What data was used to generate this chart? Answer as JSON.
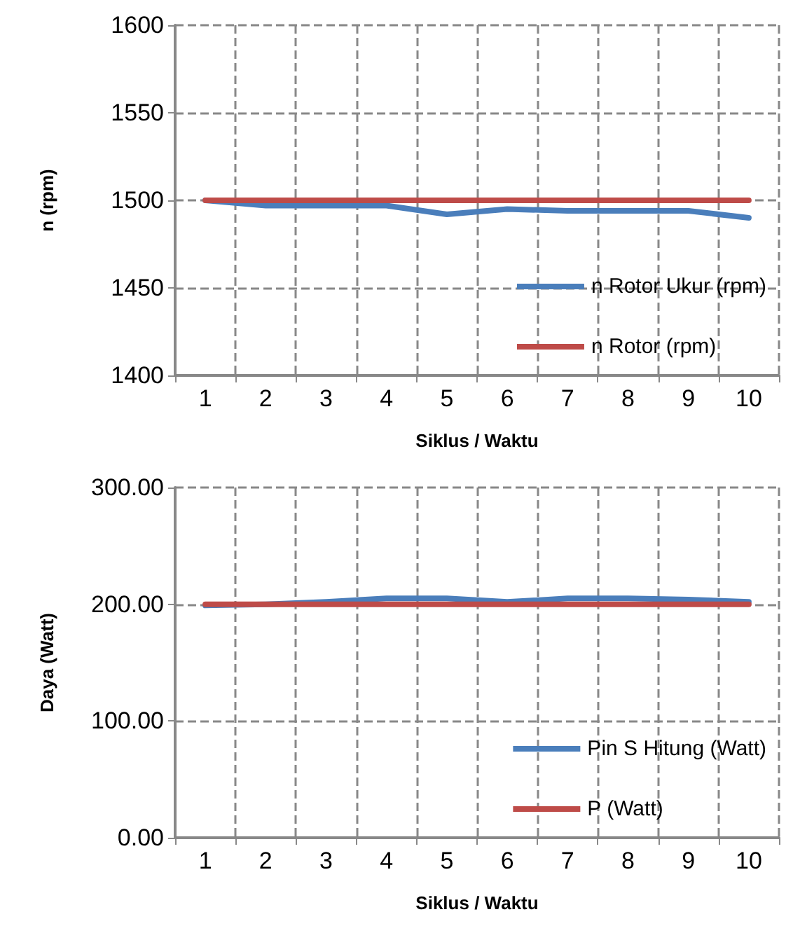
{
  "chart_data": [
    {
      "type": "line",
      "xlabel": "Siklus / Waktu",
      "ylabel": "n (rpm)",
      "categories": [
        "1",
        "2",
        "3",
        "4",
        "5",
        "6",
        "7",
        "8",
        "9",
        "10"
      ],
      "series": [
        {
          "name": "n Rotor Ukur (rpm)",
          "color": "#4a7ebb",
          "values": [
            1500,
            1497,
            1497,
            1497,
            1492,
            1495,
            1494,
            1494,
            1494,
            1490
          ]
        },
        {
          "name": "n Rotor (rpm)",
          "color": "#be4b48",
          "values": [
            1500,
            1500,
            1500,
            1500,
            1500,
            1500,
            1500,
            1500,
            1500,
            1500
          ]
        }
      ],
      "ylim": [
        1400,
        1600
      ],
      "yticks": [
        1400,
        1450,
        1500,
        1550,
        1600
      ],
      "grid": true,
      "legend": "bottom right",
      "marker": "none",
      "line_style": "solid"
    },
    {
      "type": "line",
      "xlabel": "Siklus / Waktu",
      "ylabel": "Daya (Watt)",
      "categories": [
        "1",
        "2",
        "3",
        "4",
        "5",
        "6",
        "7",
        "8",
        "9",
        "10"
      ],
      "series": [
        {
          "name": "Pin S Hitung (Watt)",
          "color": "#4a7ebb",
          "values": [
            199,
            200,
            202,
            205,
            205,
            202,
            205,
            205,
            204,
            202
          ]
        },
        {
          "name": "P (Watt)",
          "color": "#be4b48",
          "values": [
            200,
            200,
            200,
            200,
            200,
            200,
            200,
            200,
            200,
            200
          ]
        }
      ],
      "ylim": [
        0,
        300
      ],
      "yticks": [
        {
          "value": 0,
          "label": "0.00"
        },
        {
          "value": 100,
          "label": "100.00"
        },
        {
          "value": 200,
          "label": "200.00"
        },
        {
          "value": 300,
          "label": "300.00"
        }
      ],
      "grid": true,
      "legend": "bottom right",
      "marker": "none",
      "line_style": "solid"
    }
  ]
}
